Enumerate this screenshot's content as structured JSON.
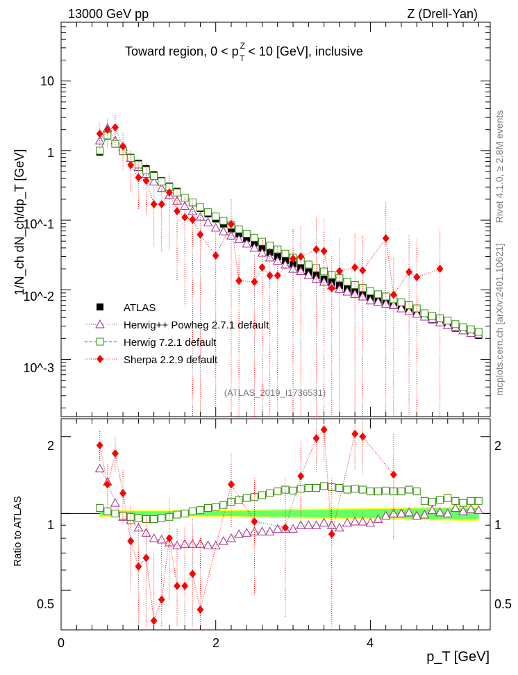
{
  "header": {
    "left": "13000 GeV pp",
    "right": "Z (Drell-Yan)"
  },
  "side_text": {
    "rivet": "Rivet 4.1.0, ≥ 2.8M events",
    "mcplots": "mcplots.cern.ch [arXiv:2401.10621]"
  },
  "watermark": "(ATLAS_2019_I1736531)",
  "colors": {
    "data": "#000000",
    "herwigpp": "#9b2d86",
    "herwig7": "#2d8c00",
    "sherpa": "#ff0000",
    "band_inner": "#66ff66",
    "band_outer": "#ffff33"
  },
  "chart_data": [
    {
      "type": "scatter",
      "panel": "main",
      "title_parts": {
        "before": "Toward region, 0 < p",
        "sup": "Z",
        "sub": "T",
        "after": " < 10 [GeV], inclusive"
      },
      "ylabel": "1/N_ch dN_ch/dp_T [GeV]",
      "yscale": "log",
      "ylim": [
        0.00015,
        70
      ],
      "xlim": [
        0,
        5.55
      ],
      "y_tick_labels": [
        "10",
        "1",
        "10^-1",
        "10^-2",
        "10^-3"
      ],
      "x": [
        0.5,
        0.6,
        0.7,
        0.8,
        0.9,
        1.0,
        1.1,
        1.2,
        1.3,
        1.4,
        1.5,
        1.6,
        1.7,
        1.8,
        1.9,
        2.0,
        2.1,
        2.2,
        2.3,
        2.4,
        2.5,
        2.6,
        2.7,
        2.8,
        2.9,
        3.0,
        3.1,
        3.2,
        3.3,
        3.4,
        3.5,
        3.6,
        3.7,
        3.8,
        3.9,
        4.0,
        4.1,
        4.2,
        4.3,
        4.4,
        4.5,
        4.6,
        4.7,
        4.8,
        4.9,
        5.0,
        5.1,
        5.2,
        5.3,
        5.4
      ],
      "legend": [
        "ATLAS",
        "Herwig++ Powheg 2.7.1 default",
        "Herwig 7.2.1 default",
        "Sherpa 2.2.9 default"
      ],
      "series": [
        {
          "name": "ATLAS",
          "marker": "square-filled",
          "values": [
            0.95,
            1.62,
            1.25,
            1.0,
            0.8,
            0.66,
            0.55,
            0.45,
            0.37,
            0.31,
            0.26,
            0.21,
            0.177,
            0.148,
            0.123,
            0.104,
            0.088,
            0.075,
            0.064,
            0.055,
            0.047,
            0.04,
            0.0345,
            0.03,
            0.0265,
            0.0235,
            0.0205,
            0.018,
            0.016,
            0.0142,
            0.0128,
            0.0115,
            0.0104,
            0.0094,
            0.0086,
            0.0078,
            0.0071,
            0.0065,
            0.006,
            0.0054,
            0.0049,
            0.0045,
            0.0041,
            0.0037,
            0.0034,
            0.0031,
            0.0028,
            0.0026,
            0.0024,
            0.0022
          ]
        },
        {
          "name": "Herwig++ Powheg 2.7.1 default",
          "marker": "triangle-open",
          "values": [
            1.4,
            2.1,
            1.4,
            1.12,
            0.78,
            0.58,
            0.46,
            0.36,
            0.29,
            0.23,
            0.19,
            0.16,
            0.135,
            0.112,
            0.093,
            0.078,
            0.069,
            0.06,
            0.053,
            0.046,
            0.04,
            0.034,
            0.029,
            0.026,
            0.023,
            0.02,
            0.0185,
            0.0162,
            0.0143,
            0.013,
            0.0115,
            0.0102,
            0.0094,
            0.0087,
            0.008,
            0.007,
            0.0067,
            0.0063,
            0.006,
            0.0054,
            0.0049,
            0.0045,
            0.0041,
            0.0038,
            0.0034,
            0.0031,
            0.0029,
            0.0026,
            0.0024,
            0.0023
          ]
        },
        {
          "name": "Herwig 7.2.1 default",
          "marker": "square-open",
          "values": [
            1.0,
            1.65,
            1.25,
            0.98,
            0.78,
            0.63,
            0.52,
            0.43,
            0.36,
            0.3,
            0.25,
            0.21,
            0.18,
            0.153,
            0.13,
            0.113,
            0.098,
            0.085,
            0.074,
            0.064,
            0.056,
            0.049,
            0.043,
            0.038,
            0.033,
            0.029,
            0.026,
            0.023,
            0.0205,
            0.0183,
            0.0163,
            0.0148,
            0.013,
            0.0117,
            0.0106,
            0.0095,
            0.0086,
            0.008,
            0.0073,
            0.0066,
            0.006,
            0.0054,
            0.0046,
            0.0042,
            0.0039,
            0.0036,
            0.0032,
            0.0029,
            0.0027,
            0.0025
          ]
        },
        {
          "name": "Sherpa 2.2.9 default",
          "marker": "diamond-filled",
          "values": [
            1.75,
            2.0,
            2.15,
            1.15,
            0.62,
            0.41,
            0.37,
            0.17,
            0.17,
            0.25,
            0.135,
            0.11,
            0.102,
            0.062,
            null,
            0.031,
            null,
            0.088,
            0.0135,
            null,
            0.013,
            0.021,
            0.016,
            0.016,
            null,
            0.028,
            0.03,
            null,
            0.038,
            0.036,
            0.0105,
            0.0185,
            null,
            0.021,
            0.019,
            null,
            null,
            0.055,
            0.0085,
            null,
            0.018,
            0.0152,
            null,
            null,
            0.02,
            null,
            null,
            null,
            null,
            null
          ]
        }
      ]
    },
    {
      "type": "scatter",
      "panel": "ratio",
      "ylabel": "Ratio to ATLAS",
      "ylim": [
        0.35,
        2.35
      ],
      "xlim": [
        0,
        5.55
      ],
      "xlabel": "p_T [GeV]",
      "x_tick_labels": [
        "0",
        "2",
        "4"
      ],
      "y_tick_labels": [
        "0.5",
        "1",
        "2"
      ],
      "band_inner_halfwidth": [
        0.02,
        0.02,
        0.02,
        0.02,
        0.02,
        0.02,
        0.02,
        0.02,
        0.02,
        0.02,
        0.02,
        0.02,
        0.02,
        0.02,
        0.02,
        0.02,
        0.022,
        0.022,
        0.024,
        0.024,
        0.026,
        0.026,
        0.028,
        0.028,
        0.03,
        0.03,
        0.03,
        0.032,
        0.032,
        0.034,
        0.034,
        0.036,
        0.036,
        0.038,
        0.038,
        0.04,
        0.04,
        0.04,
        0.042,
        0.042,
        0.044,
        0.044,
        0.046,
        0.046,
        0.048,
        0.048,
        0.05,
        0.05,
        0.05,
        0.05
      ],
      "band_outer_halfwidth": [
        0.03,
        0.03,
        0.03,
        0.03,
        0.03,
        0.03,
        0.03,
        0.03,
        0.03,
        0.03,
        0.03,
        0.03,
        0.03,
        0.03,
        0.032,
        0.032,
        0.034,
        0.034,
        0.036,
        0.036,
        0.038,
        0.038,
        0.04,
        0.04,
        0.042,
        0.042,
        0.044,
        0.044,
        0.046,
        0.046,
        0.048,
        0.048,
        0.05,
        0.05,
        0.052,
        0.052,
        0.054,
        0.054,
        0.056,
        0.056,
        0.058,
        0.058,
        0.06,
        0.06,
        0.062,
        0.062,
        0.064,
        0.064,
        0.066,
        0.066
      ],
      "series": [
        {
          "name": "Herwig++ Powheg 2.7.1 default",
          "values": [
            1.5,
            1.33,
            1.1,
            0.97,
            0.94,
            0.88,
            0.84,
            0.8,
            0.79,
            0.77,
            0.75,
            0.76,
            0.76,
            0.76,
            0.75,
            0.75,
            0.78,
            0.8,
            0.83,
            0.84,
            0.85,
            0.85,
            0.85,
            0.87,
            0.87,
            0.87,
            0.9,
            0.9,
            0.9,
            0.92,
            0.9,
            0.88,
            0.92,
            0.93,
            0.93,
            0.92,
            0.95,
            0.98,
            1.0,
            1.0,
            1.01,
            0.98,
            0.99,
            1.03,
            1.01,
            1.0,
            1.05,
            1.02,
            1.04,
            1.03
          ]
        },
        {
          "name": "Herwig 7.2.1 default",
          "values": [
            1.05,
            1.02,
            1.0,
            0.98,
            0.97,
            0.96,
            0.95,
            0.95,
            0.96,
            0.97,
            0.99,
            1.0,
            1.02,
            1.03,
            1.05,
            1.06,
            1.08,
            1.11,
            1.13,
            1.15,
            1.16,
            1.18,
            1.2,
            1.22,
            1.24,
            1.23,
            1.25,
            1.26,
            1.26,
            1.28,
            1.27,
            1.26,
            1.24,
            1.25,
            1.24,
            1.22,
            1.22,
            1.23,
            1.22,
            1.22,
            1.24,
            1.22,
            1.12,
            1.11,
            1.13,
            1.15,
            1.12,
            1.1,
            1.12,
            1.12
          ]
        },
        {
          "name": "Sherpa 2.2.9 default",
          "values": [
            1.85,
            1.3,
            1.72,
            1.2,
            0.78,
            0.62,
            0.67,
            0.38,
            0.46,
            0.8,
            0.52,
            0.52,
            0.58,
            0.42,
            null,
            null,
            null,
            1.3,
            null,
            null,
            0.93,
            null,
            null,
            null,
            0.88,
            null,
            1.4,
            null,
            1.97,
            2.13,
            0.83,
            null,
            null,
            2.05,
            2.0,
            null,
            null,
            null,
            1.42,
            null,
            null,
            null,
            null,
            null,
            null,
            null,
            null,
            null,
            null,
            null
          ]
        }
      ]
    }
  ]
}
